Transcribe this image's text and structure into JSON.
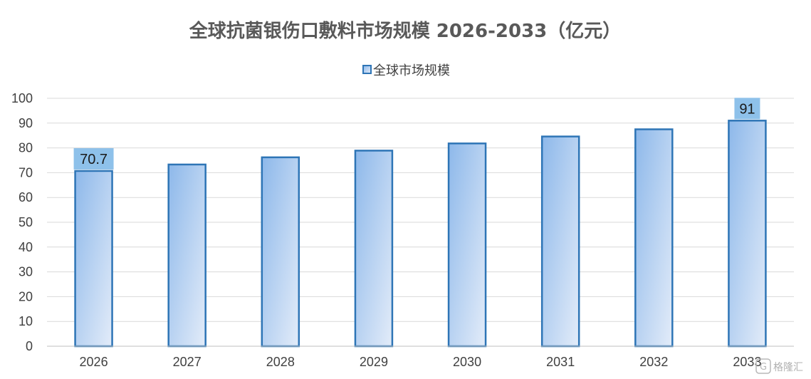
{
  "chart_data": {
    "type": "bar",
    "title": "全球抗菌银伤口敷料市场规模 2026-2033（亿元）",
    "categories": [
      "2026",
      "2027",
      "2028",
      "2029",
      "2030",
      "2031",
      "2032",
      "2033"
    ],
    "series": [
      {
        "name": "全球市场规模",
        "values": [
          70.7,
          73.3,
          76.2,
          78.9,
          81.8,
          84.6,
          87.5,
          91
        ]
      }
    ],
    "data_labels": [
      {
        "category": "2026",
        "text": "70.7"
      },
      {
        "category": "2033",
        "text": "91"
      }
    ],
    "ylim": [
      0,
      100
    ],
    "yticks": [
      0,
      10,
      20,
      30,
      40,
      50,
      60,
      70,
      80,
      90,
      100
    ],
    "grid": true,
    "legend": "top-center",
    "colors": {
      "bar_fill_top": "#8db8ea",
      "bar_fill_bottom": "#dce8f8",
      "bar_stroke": "#2e75b6",
      "label_bg": "#8ec1ea"
    }
  },
  "watermark": {
    "icon": "gezhi-logo-icon",
    "text": "格隆汇"
  }
}
